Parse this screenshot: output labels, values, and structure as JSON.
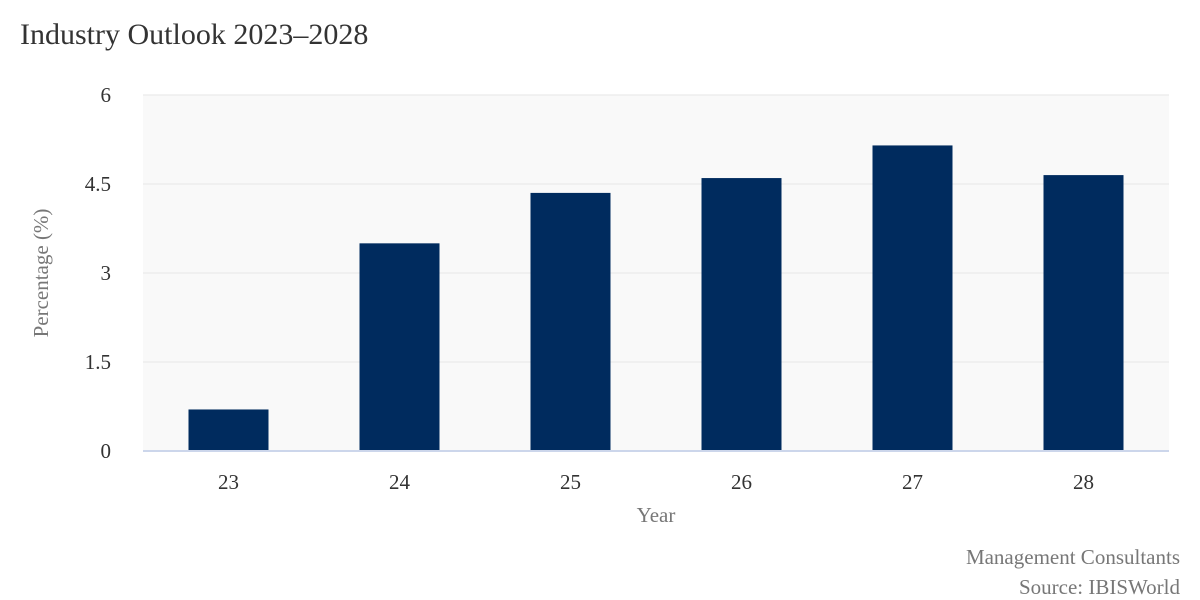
{
  "title": "Industry Outlook 2023–2028",
  "credits": {
    "line1": "Management Consultants",
    "line2": "Source: IBISWorld"
  },
  "colors": {
    "bar": "#002B5E",
    "plot_background": "#F9F9F9",
    "gridline": "#E6E6E6",
    "axis_line": "#CCD6EB"
  },
  "chart_data": {
    "type": "bar",
    "title": "Industry Outlook 2023–2028",
    "xlabel": "Year",
    "ylabel": "Percentage (%)",
    "categories": [
      "23",
      "24",
      "25",
      "26",
      "27",
      "28"
    ],
    "values": [
      0.7,
      3.5,
      4.35,
      4.6,
      5.15,
      4.65
    ],
    "ylim": [
      0,
      6
    ],
    "yticks": [
      "0",
      "1.5",
      "3",
      "4.5",
      "6"
    ],
    "grid": true,
    "legend": "none"
  }
}
